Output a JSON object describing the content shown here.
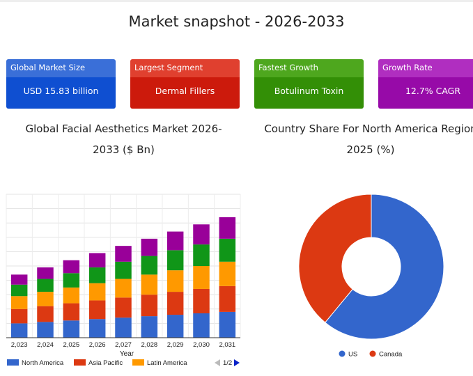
{
  "page_title": "Market snapshot - 2026-2033",
  "cards": [
    {
      "label": "Global Market Size",
      "value": "USD 15.83 billion",
      "head_color": "#3a6fd8",
      "body_color": "#0f4fd1"
    },
    {
      "label": "Largest Segment",
      "value": "Dermal Fillers",
      "head_color": "#e0402f",
      "body_color": "#cc1a0c"
    },
    {
      "label": "Fastest Growth",
      "value": "Botulinum Toxin",
      "head_color": "#4ea71e",
      "body_color": "#338f06"
    },
    {
      "label": "Growth Rate",
      "value": "12.7% CAGR",
      "head_color": "#b02ec0",
      "body_color": "#970aa8"
    }
  ],
  "chart_data": [
    {
      "type": "bar",
      "stacked": true,
      "title_line1": "Global Facial Aesthetics Market 2026-",
      "title_line2": "2033 ($ Bn)",
      "xlabel": "Year",
      "categories": [
        "2,023",
        "2,024",
        "2,025",
        "2,026",
        "2,027",
        "2,028",
        "2,029",
        "2,030",
        "2,031"
      ],
      "ylim": [
        0,
        10
      ],
      "grid": true,
      "legend_position": "bottom",
      "legend_page": "1/2",
      "series": [
        {
          "name": "North America",
          "color": "#3366cc",
          "values": [
            1.0,
            1.1,
            1.2,
            1.3,
            1.4,
            1.5,
            1.6,
            1.7,
            1.8
          ]
        },
        {
          "name": "Asia Pacific",
          "color": "#dc3912",
          "values": [
            1.0,
            1.1,
            1.2,
            1.3,
            1.4,
            1.5,
            1.6,
            1.7,
            1.8
          ]
        },
        {
          "name": "Latin America",
          "color": "#ff9900",
          "values": [
            0.9,
            1.0,
            1.1,
            1.2,
            1.3,
            1.4,
            1.5,
            1.6,
            1.7
          ]
        },
        {
          "name": "",
          "color": "#109618",
          "values": [
            0.8,
            0.9,
            1.0,
            1.1,
            1.2,
            1.3,
            1.4,
            1.5,
            1.6
          ]
        },
        {
          "name": "",
          "color": "#990099",
          "values": [
            0.7,
            0.8,
            0.9,
            1.0,
            1.1,
            1.2,
            1.3,
            1.4,
            1.5
          ]
        }
      ]
    },
    {
      "type": "pie",
      "donut": true,
      "title_line1": "Country Share For North America Region",
      "title_line2": "2025 (%)",
      "legend_position": "bottom",
      "slices": [
        {
          "name": "US",
          "value": 61,
          "color": "#3366cc"
        },
        {
          "name": "Canada",
          "value": 39,
          "color": "#dc3912"
        }
      ]
    }
  ]
}
